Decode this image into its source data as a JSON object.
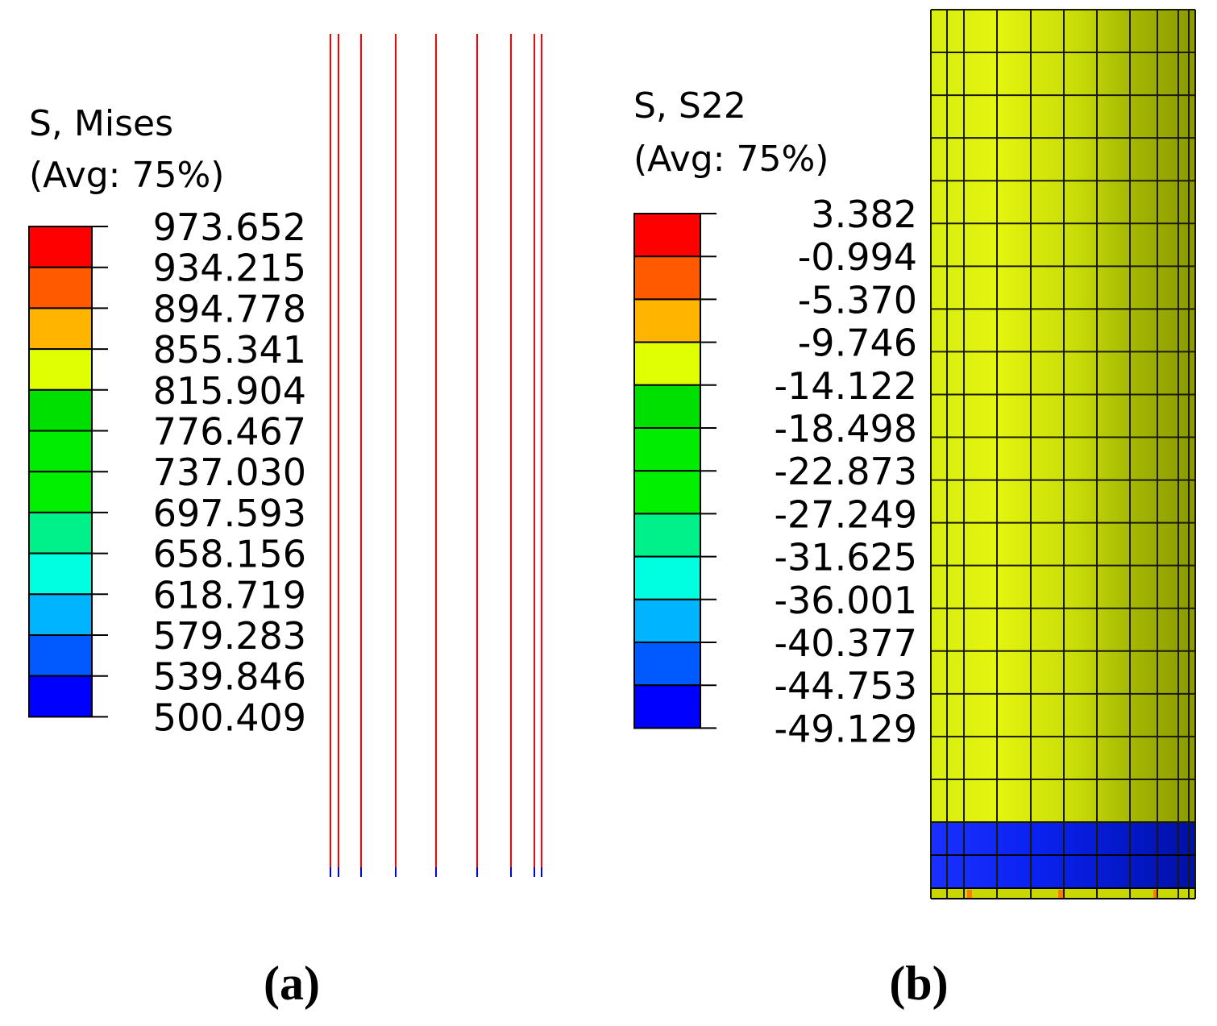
{
  "panel_a": {
    "legend": {
      "title": "S, Mises",
      "subtitle": "(Avg: 75%)",
      "values": [
        "973.652",
        "934.215",
        "894.778",
        "855.341",
        "815.904",
        "776.467",
        "737.030",
        "697.593",
        "658.156",
        "618.719",
        "579.283",
        "539.846",
        "500.409"
      ],
      "colors": [
        "#ff0000",
        "#ff5a00",
        "#ffb400",
        "#e0ff00",
        "#00e000",
        "#00ec00",
        "#00f000",
        "#00f08a",
        "#00ffe0",
        "#00b4ff",
        "#005aff",
        "#0000ff"
      ]
    },
    "line_color": "#ff0000",
    "line_foot_color": "#0000ff",
    "caption": "(a)"
  },
  "panel_b": {
    "legend": {
      "title": "S, S22",
      "subtitle": "(Avg: 75%)",
      "values": [
        "3.382",
        "-0.994",
        "-5.370",
        "-9.746",
        "-14.122",
        "-18.498",
        "-22.873",
        "-27.249",
        "-31.625",
        "-36.001",
        "-40.377",
        "-44.753",
        "-49.129"
      ],
      "colors": [
        "#ff0000",
        "#ff5a00",
        "#ffb400",
        "#e0ff00",
        "#00e000",
        "#00ec00",
        "#00f000",
        "#00f08a",
        "#00ffe0",
        "#00b4ff",
        "#005aff",
        "#0000ff"
      ]
    },
    "cylinder_body_color": "#d4e400",
    "cylinder_base_color": "#0018e8",
    "caption": "(b)"
  }
}
